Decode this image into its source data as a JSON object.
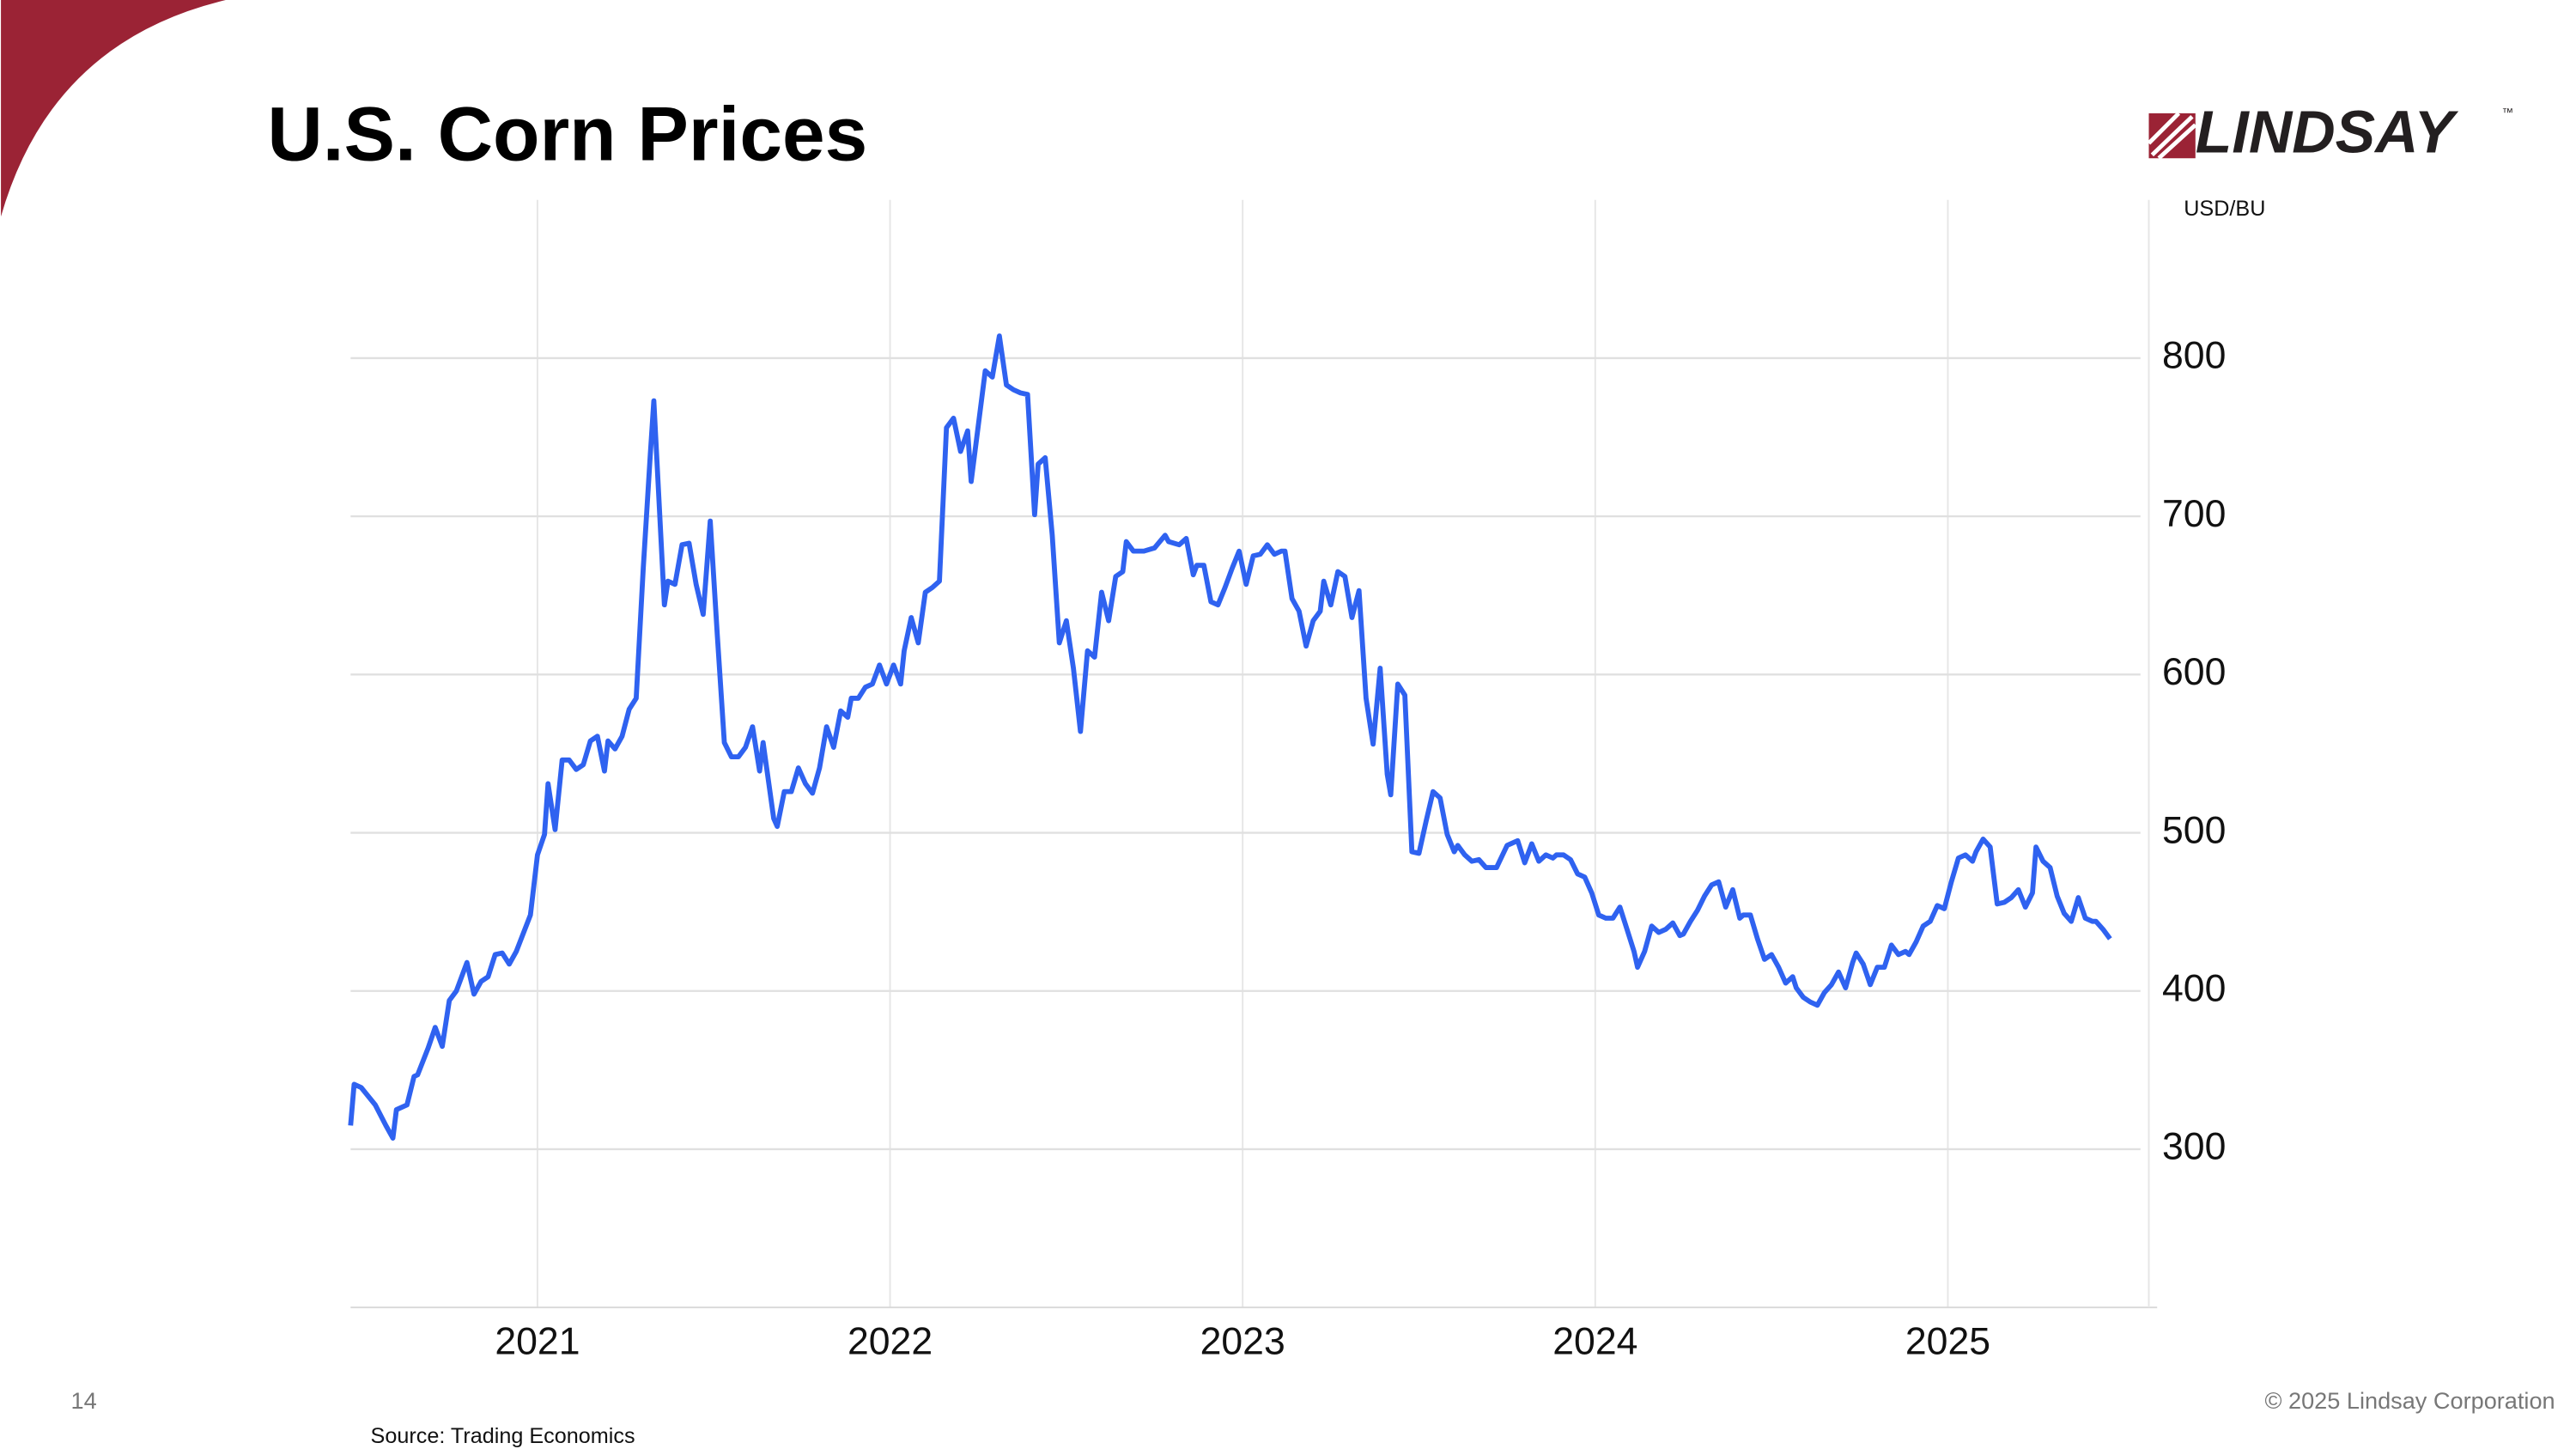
{
  "slide": {
    "number": "14",
    "footer": "© 2025 Lindsay Corporation",
    "logo": "LINDSAY",
    "trademark": "™"
  },
  "chart_data": {
    "type": "line",
    "title": "U.S. Corn Prices",
    "y_label": "USD/BU",
    "source": "Source: Trading Economics",
    "color": "#2f62f0",
    "grid": true,
    "xlim": [
      2020.47,
      2025.57
    ],
    "xticks": [
      2021,
      2022,
      2023,
      2024,
      2025
    ],
    "ylim": [
      200,
      900
    ],
    "yticks": [
      300,
      400,
      500,
      600,
      700,
      800
    ],
    "x": [
      2020.47,
      2020.48,
      2020.5,
      2020.54,
      2020.57,
      2020.59,
      2020.6,
      2020.63,
      2020.65,
      2020.66,
      2020.69,
      2020.71,
      2020.73,
      2020.75,
      2020.77,
      2020.8,
      2020.82,
      2020.84,
      2020.86,
      2020.88,
      2020.9,
      2020.92,
      2020.94,
      2020.98,
      2021.0,
      2021.02,
      2021.03,
      2021.05,
      2021.07,
      2021.09,
      2021.11,
      2021.13,
      2021.15,
      2021.17,
      2021.19,
      2021.2,
      2021.22,
      2021.24,
      2021.26,
      2021.28,
      2021.3,
      2021.32,
      2021.33,
      2021.36,
      2021.37,
      2021.39,
      2021.41,
      2021.43,
      2021.45,
      2021.47,
      2021.49,
      2021.51,
      2021.53,
      2021.55,
      2021.57,
      2021.59,
      2021.61,
      2021.63,
      2021.64,
      2021.67,
      2021.68,
      2021.7,
      2021.72,
      2021.74,
      2021.76,
      2021.78,
      2021.8,
      2021.82,
      2021.84,
      2021.86,
      2021.88,
      2021.89,
      2021.91,
      2021.93,
      2021.95,
      2021.97,
      2021.99,
      2022.01,
      2022.03,
      2022.04,
      2022.06,
      2022.08,
      2022.1,
      2022.12,
      2022.14,
      2022.16,
      2022.18,
      2022.2,
      2022.22,
      2022.23,
      2022.25,
      2022.27,
      2022.29,
      2022.31,
      2022.33,
      2022.35,
      2022.37,
      2022.39,
      2022.41,
      2022.42,
      2022.44,
      2022.46,
      2022.48,
      2022.5,
      2022.52,
      2022.54,
      2022.56,
      2022.58,
      2022.6,
      2022.62,
      2022.64,
      2022.66,
      2022.67,
      2022.69,
      2022.72,
      2022.75,
      2022.78,
      2022.79,
      2022.82,
      2022.84,
      2022.86,
      2022.87,
      2022.89,
      2022.91,
      2022.93,
      2022.95,
      2022.97,
      2022.99,
      2023.01,
      2023.03,
      2023.05,
      2023.07,
      2023.09,
      2023.11,
      2023.12,
      2023.14,
      2023.16,
      2023.18,
      2023.2,
      2023.22,
      2023.23,
      2023.25,
      2023.27,
      2023.29,
      2023.31,
      2023.33,
      2023.35,
      2023.37,
      2023.39,
      2023.41,
      2023.42,
      2023.44,
      2023.46,
      2023.48,
      2023.5,
      2023.52,
      2023.54,
      2023.56,
      2023.58,
      2023.6,
      2023.61,
      2023.63,
      2023.65,
      2023.67,
      2023.69,
      2023.71,
      2023.72,
      2023.75,
      2023.76,
      2023.78,
      2023.8,
      2023.82,
      2023.84,
      2023.86,
      2023.88,
      2023.89,
      2023.91,
      2023.93,
      2023.95,
      2023.97,
      2023.99,
      2024.01,
      2024.03,
      2024.05,
      2024.07,
      2024.09,
      2024.11,
      2024.12,
      2024.14,
      2024.16,
      2024.18,
      2024.2,
      2024.22,
      2024.24,
      2024.25,
      2024.27,
      2024.29,
      2024.31,
      2024.33,
      2024.35,
      2024.37,
      2024.39,
      2024.41,
      2024.42,
      2024.44,
      2024.46,
      2024.48,
      2024.5,
      2024.52,
      2024.54,
      2024.56,
      2024.57,
      2024.59,
      2024.61,
      2024.63,
      2024.65,
      2024.67,
      2024.69,
      2024.71,
      2024.73,
      2024.74,
      2024.76,
      2024.78,
      2024.8,
      2024.82,
      2024.84,
      2024.86,
      2024.88,
      2024.89,
      2024.91,
      2024.93,
      2024.95,
      2024.97,
      2024.99,
      2025.01,
      2025.03,
      2025.05,
      2025.07,
      2025.08,
      2025.1,
      2025.12,
      2025.14,
      2025.16,
      2025.18,
      2025.2,
      2025.22,
      2025.24,
      2025.25,
      2025.27,
      2025.29,
      2025.31,
      2025.33,
      2025.35,
      2025.37,
      2025.39,
      2025.41,
      2025.42,
      2025.44,
      2025.46
    ],
    "values": [
      315,
      341,
      339,
      328,
      315,
      307,
      325,
      328,
      346,
      347,
      364,
      377,
      365,
      394,
      400,
      418,
      398,
      406,
      409,
      423,
      424,
      417,
      425,
      448,
      486,
      499,
      531,
      502,
      546,
      546,
      540,
      543,
      558,
      561,
      539,
      558,
      553,
      561,
      578,
      585,
      667,
      739,
      773,
      644,
      659,
      657,
      682,
      683,
      657,
      638,
      697,
      625,
      557,
      548,
      548,
      554,
      567,
      539,
      557,
      509,
      504,
      526,
      526,
      541,
      531,
      525,
      541,
      567,
      554,
      577,
      573,
      585,
      585,
      592,
      594,
      606,
      594,
      606,
      594,
      615,
      636,
      620,
      652,
      655,
      659,
      756,
      762,
      741,
      754,
      722,
      757,
      792,
      788,
      814,
      783,
      780,
      778,
      777,
      701,
      733,
      737,
      688,
      620,
      634,
      604,
      564,
      615,
      611,
      652,
      634,
      662,
      665,
      684,
      678,
      678,
      680,
      688,
      684,
      682,
      686,
      663,
      669,
      669,
      646,
      644,
      655,
      667,
      678,
      657,
      675,
      676,
      682,
      676,
      678,
      678,
      648,
      640,
      618,
      634,
      640,
      659,
      644,
      665,
      662,
      636,
      653,
      585,
      556,
      604,
      537,
      524,
      594,
      587,
      488,
      487,
      507,
      526,
      522,
      499,
      488,
      492,
      486,
      482,
      483,
      478,
      478,
      478,
      492,
      493,
      495,
      481,
      493,
      482,
      486,
      484,
      486,
      486,
      483,
      474,
      472,
      462,
      448,
      446,
      446,
      453,
      439,
      425,
      415,
      425,
      441,
      437,
      439,
      443,
      435,
      436,
      444,
      451,
      460,
      467,
      469,
      453,
      464,
      446,
      448,
      448,
      433,
      420,
      423,
      415,
      405,
      409,
      402,
      396,
      393,
      391,
      399,
      404,
      412,
      402,
      418,
      424,
      417,
      404,
      415,
      415,
      429,
      423,
      425,
      423,
      431,
      441,
      444,
      454,
      452,
      469,
      484,
      486,
      482,
      488,
      496,
      491,
      455,
      456,
      459,
      464,
      453,
      462,
      491,
      482,
      478,
      460,
      449,
      444,
      459,
      446,
      444,
      444,
      439,
      433
    ]
  }
}
